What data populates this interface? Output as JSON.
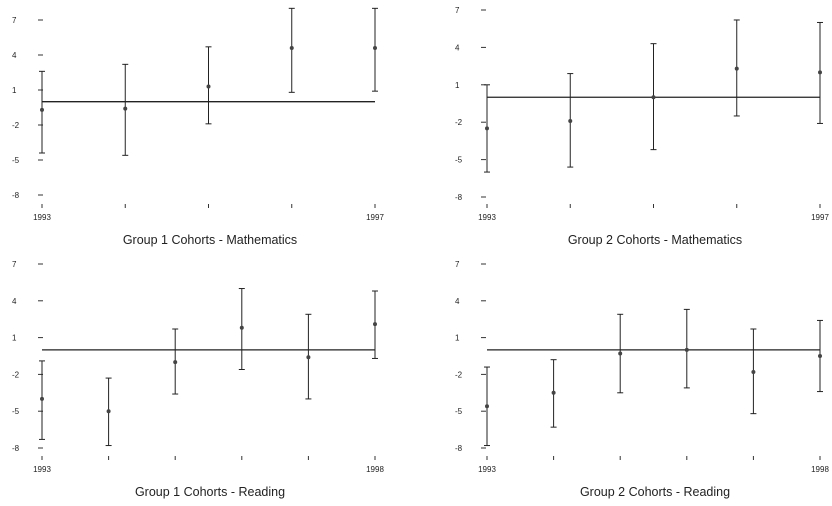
{
  "chart_data": [
    {
      "type": "errorbar",
      "title": "Group 1 Cohorts - Mathematics",
      "y_ticks": [
        7,
        4,
        1,
        -2,
        -5,
        -8
      ],
      "ylim": [
        -8,
        7
      ],
      "x_start_label": "1993",
      "x_end_label": "1997",
      "x_count": 5,
      "reference_line": 0,
      "estimates": [
        -0.7,
        -0.6,
        1.3,
        4.6,
        4.6
      ],
      "lower": [
        -4.4,
        -4.6,
        -1.9,
        0.8,
        0.9
      ],
      "upper": [
        2.6,
        3.2,
        4.7,
        8.0,
        8.0
      ]
    },
    {
      "type": "errorbar",
      "title": "Group 2 Cohorts - Mathematics",
      "y_ticks": [
        7,
        4,
        1,
        -2,
        -5,
        -8
      ],
      "ylim": [
        -8,
        7
      ],
      "x_start_label": "1993",
      "x_end_label": "1997",
      "x_count": 5,
      "reference_line": 0,
      "estimates": [
        -2.5,
        -1.9,
        0.0,
        2.3,
        2.0
      ],
      "lower": [
        -6.0,
        -5.6,
        -4.2,
        -1.5,
        -2.1
      ],
      "upper": [
        1.0,
        1.9,
        4.3,
        6.2,
        6.0
      ]
    },
    {
      "type": "errorbar",
      "title": "Group 1 Cohorts - Reading",
      "y_ticks": [
        7,
        4,
        1,
        -2,
        -5,
        -8
      ],
      "ylim": [
        -8,
        7
      ],
      "x_start_label": "1993",
      "x_end_label": "1998",
      "x_count": 6,
      "reference_line": 0,
      "estimates": [
        -4.0,
        -5.0,
        -1.0,
        1.8,
        -0.6,
        2.1
      ],
      "lower": [
        -7.3,
        -7.8,
        -3.6,
        -1.6,
        -4.0,
        -0.7
      ],
      "upper": [
        -0.9,
        -2.3,
        1.7,
        5.0,
        2.9,
        4.8
      ]
    },
    {
      "type": "errorbar",
      "title": "Group 2 Cohorts - Reading",
      "y_ticks": [
        7,
        4,
        1,
        -2,
        -5,
        -8
      ],
      "ylim": [
        -8,
        7
      ],
      "x_start_label": "1993",
      "x_end_label": "1998",
      "x_count": 6,
      "reference_line": 0,
      "estimates": [
        -4.6,
        -3.5,
        -0.3,
        0.0,
        -1.8,
        -0.5
      ],
      "lower": [
        -7.8,
        -6.3,
        -3.5,
        -3.1,
        -5.2,
        -3.4
      ],
      "upper": [
        -1.4,
        -0.8,
        2.9,
        3.3,
        1.7,
        2.4
      ]
    }
  ]
}
